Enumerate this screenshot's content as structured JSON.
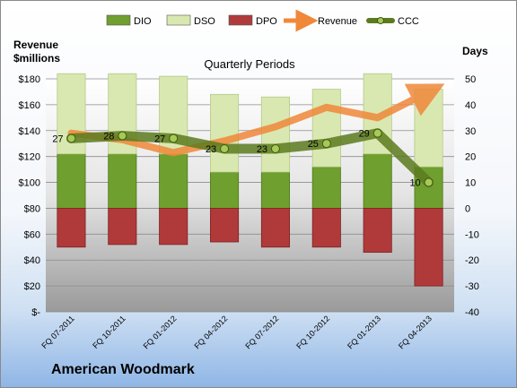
{
  "chart_data": {
    "type": "bar",
    "title": "Quarterly Periods",
    "company": "American Woodmark",
    "ylabel_left": "Revenue\n$millions",
    "ylabel_right": "Days",
    "legend_position": "top",
    "categories": [
      "FQ 07-2011",
      "FQ 10-2011",
      "FQ 01-2012",
      "FQ 04-2012",
      "FQ 07-2012",
      "FQ 10-2012",
      "FQ 01-2013",
      "FQ 04-2013"
    ],
    "left_axis": {
      "min": 0,
      "max": 180,
      "step": 20,
      "ticks": [
        "$-",
        "$20",
        "$40",
        "$60",
        "$80",
        "$100",
        "$120",
        "$140",
        "$160",
        "$180"
      ]
    },
    "right_axis": {
      "min": -40,
      "max": 50,
      "step": 10,
      "ticks": [
        "-40",
        "-30",
        "-20",
        "-10",
        "0",
        "10",
        "20",
        "30",
        "40",
        "50"
      ]
    },
    "series": [
      {
        "name": "DIO",
        "axis": "right",
        "kind": "stacked-bar",
        "values": [
          21,
          21,
          21,
          14,
          14,
          16,
          21,
          16
        ],
        "color": "#6f9f2e"
      },
      {
        "name": "DSO",
        "axis": "right",
        "kind": "stacked-bar",
        "values": [
          31,
          31,
          30,
          30,
          29,
          30,
          31,
          30
        ],
        "color": "#d9e8b0"
      },
      {
        "name": "DPO",
        "axis": "right",
        "kind": "negative-bar",
        "values": [
          -15,
          -14,
          -14,
          -13,
          -15,
          -15,
          -17,
          -30
        ],
        "color": "#b03a3a"
      },
      {
        "name": "Revenue",
        "axis": "left",
        "kind": "line",
        "values": [
          138,
          133,
          123,
          132,
          143,
          158,
          150,
          170
        ],
        "color": "#f0883a"
      },
      {
        "name": "CCC",
        "axis": "right",
        "kind": "line",
        "values": [
          27,
          28,
          27,
          23,
          23,
          25,
          29,
          10
        ],
        "color": "#5c7a1f"
      }
    ],
    "data_labels": [
      "27",
      "28",
      "27",
      "23",
      "23",
      "25",
      "29",
      "10"
    ]
  }
}
